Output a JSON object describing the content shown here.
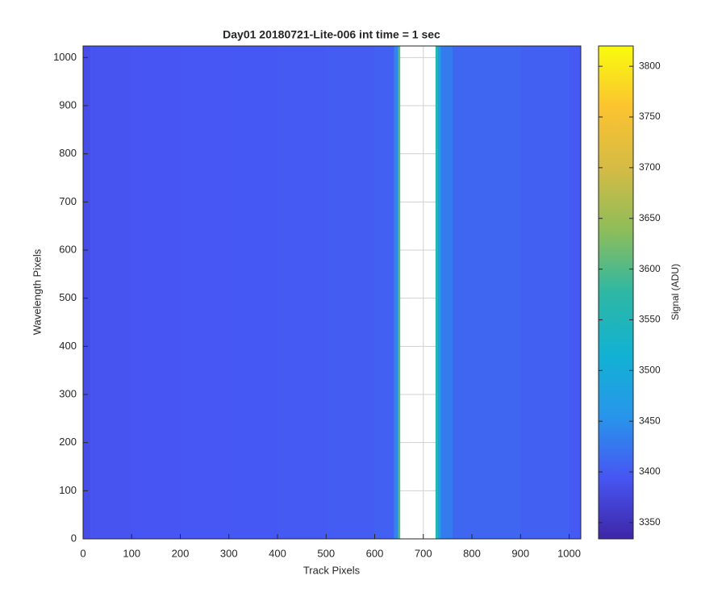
{
  "chart_data": {
    "type": "heatmap",
    "title": "Day01 20180721-Lite-006 int time = 1 sec",
    "x_label": "Track Pixels",
    "y_label": "Wavelength Pixels",
    "colorbar_label": "Signal (ADU)",
    "xbins": [
      0,
      15,
      100,
      200,
      300,
      400,
      500,
      600,
      640,
      648,
      652,
      725,
      730,
      736,
      760,
      900,
      1000,
      1024
    ],
    "values": [
      3385,
      3392,
      3395,
      3396,
      3397,
      3398,
      3400,
      3405,
      3440,
      3600,
      null,
      3560,
      3470,
      3430,
      3410,
      3405,
      3398
    ],
    "xlim": [
      0,
      1024
    ],
    "ylim": [
      0,
      1024
    ],
    "xticks": [
      0,
      100,
      200,
      300,
      400,
      500,
      600,
      700,
      800,
      900,
      1000
    ],
    "yticks": [
      0,
      100,
      200,
      300,
      400,
      500,
      600,
      700,
      800,
      900,
      1000
    ],
    "clim": [
      3334,
      3820
    ],
    "cticks": [
      3350,
      3400,
      3450,
      3500,
      3550,
      3600,
      3650,
      3700,
      3750,
      3800
    ],
    "colormap": [
      "#3e26a8",
      "#4756f3",
      "#2796eb",
      "#12b2d3",
      "#2eb7a4",
      "#8dbd5a",
      "#d4bb45",
      "#fbc330",
      "#f9fb0e"
    ],
    "grid": true
  }
}
